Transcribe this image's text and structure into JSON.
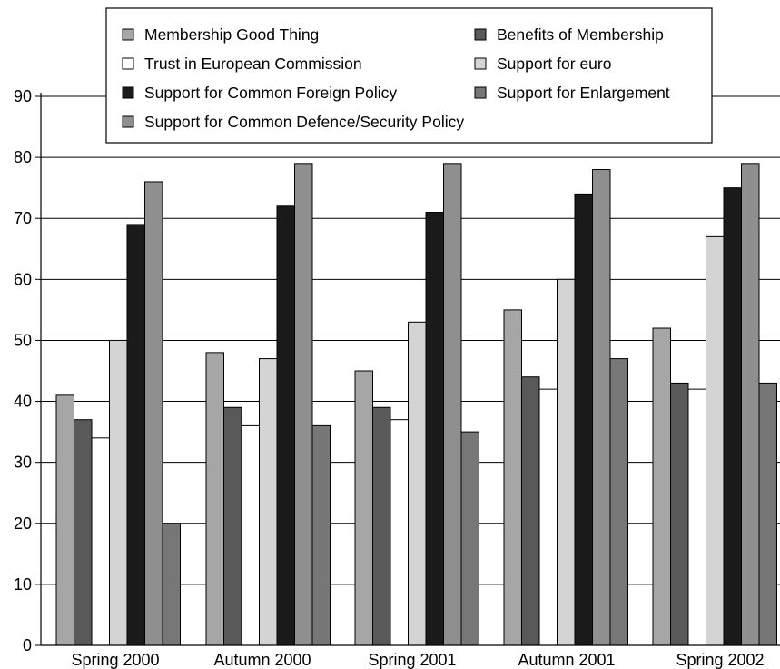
{
  "chart_data": {
    "type": "bar",
    "categories": [
      "Spring 2000",
      "Autumn 2000",
      "Spring 2001",
      "Autumn 2001",
      "Spring 2002"
    ],
    "ylim": [
      0,
      90
    ],
    "yticks": [
      "0",
      "10",
      "20",
      "30",
      "40",
      "50",
      "60",
      "70",
      "80",
      "90"
    ],
    "grid": "horizontal",
    "legend_placement": "top-center",
    "series": [
      {
        "name": "Membership Good Thing",
        "color": "#a6a6a6",
        "values": [
          41,
          48,
          45,
          55,
          52
        ]
      },
      {
        "name": "Benefits of Membership",
        "color": "#595959",
        "values": [
          37,
          39,
          39,
          44,
          43
        ]
      },
      {
        "name": "Trust in European Commission",
        "color": "#ffffff",
        "values": [
          34,
          36,
          37,
          42,
          42
        ]
      },
      {
        "name": "Support for euro",
        "color": "#d4d4d4",
        "values": [
          50,
          47,
          53,
          60,
          67
        ]
      },
      {
        "name": "Support for Common Foreign Policy",
        "color": "#1a1a1a",
        "values": [
          69,
          72,
          71,
          74,
          75
        ]
      },
      {
        "name": "Support for Common Defence/Security Policy",
        "color": "#8f8f8f",
        "values": [
          76,
          79,
          79,
          78,
          79
        ]
      },
      {
        "name": "Support for Enlargement",
        "color": "#777777",
        "values": [
          20,
          36,
          35,
          47,
          43
        ]
      }
    ]
  }
}
